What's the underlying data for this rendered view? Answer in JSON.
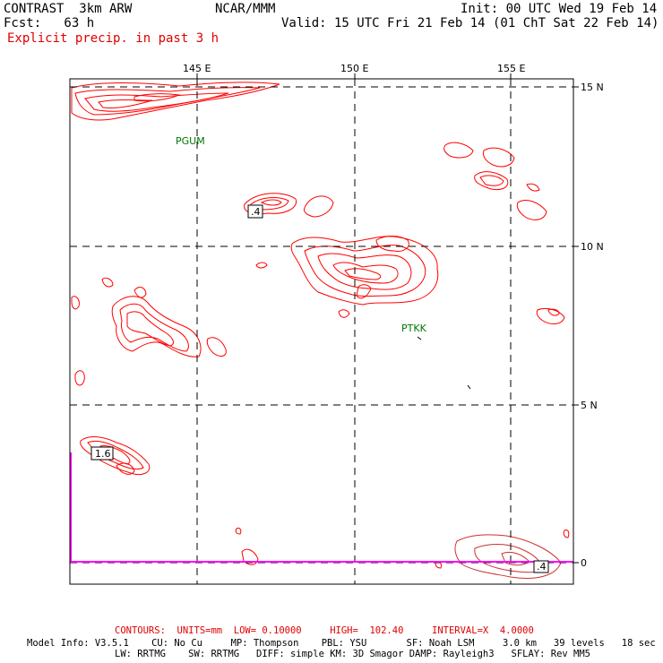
{
  "header": {
    "model": "CONTRAST  3km ARW",
    "org": "NCAR/MMM",
    "init": "Init: 00 UTC Wed 19 Feb 14",
    "fcst": "Fcst:   63 h",
    "valid": "Valid: 15 UTC Fri 21 Feb 14 (01 ChT Sat 22 Feb 14)",
    "field": "Explicit precip. in past 3 h"
  },
  "axes": {
    "lon_labels": [
      "145 E",
      "150 E",
      "155 E"
    ],
    "lat_labels": [
      "15 N",
      "10 N",
      "5 N",
      "0"
    ]
  },
  "stations": [
    "PGUM",
    "PTKK"
  ],
  "contour_labels": [
    ".4",
    "1.6",
    ".4"
  ],
  "footer": {
    "contours": "CONTOURS:  UNITS=mm  LOW= 0.10000     HIGH=  102.40     INTERVAL=X  4.0000",
    "model_info_1": "Model Info: V3.5.1    CU: No Cu     MP: Thompson    PBL: YSU       SF: Noah LSM     3.0 km   39 levels   18 sec",
    "model_info_2": "LW: RRTMG    SW: RRTMG   DIFF: simple KM: 3D Smagor DAMP: Rayleigh3   SFLAY: Rev MM5"
  },
  "colors": {
    "contour": "#ff0000",
    "station": "#007700",
    "grid": "#000000",
    "boundary": "#ff00ff",
    "header_field": "#e00000"
  }
}
